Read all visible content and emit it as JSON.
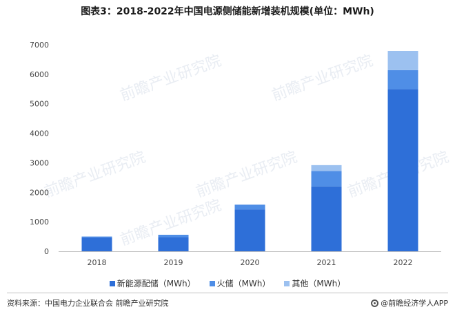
{
  "title": "图表3：2018-2022年中国电源侧储能新增装机规模(单位：MWh)",
  "chart_data": {
    "type": "bar",
    "stacked": true,
    "categories": [
      "2018",
      "2019",
      "2020",
      "2021",
      "2022"
    ],
    "series": [
      {
        "name": "新能源配储（MWh）",
        "color": "#2e6fd8",
        "values": [
          470,
          480,
          1420,
          2200,
          5500
        ]
      },
      {
        "name": "火储（MWh）",
        "color": "#4f8ee6",
        "values": [
          30,
          80,
          160,
          520,
          640
        ]
      },
      {
        "name": "其他（MWh）",
        "color": "#9cc1f0",
        "values": [
          0,
          0,
          0,
          200,
          650
        ]
      }
    ],
    "ylim": [
      0,
      7000
    ],
    "yticks": [
      "0",
      "1000",
      "2000",
      "3000",
      "4000",
      "5000",
      "6000",
      "7000"
    ],
    "grid": false,
    "legend": "bottom"
  },
  "footer": {
    "source": "资料来源：中国电力企业联合会 前瞻产业研究院",
    "brand": "@前瞻经济学人APP"
  },
  "watermark": "前瞻产业研究院"
}
